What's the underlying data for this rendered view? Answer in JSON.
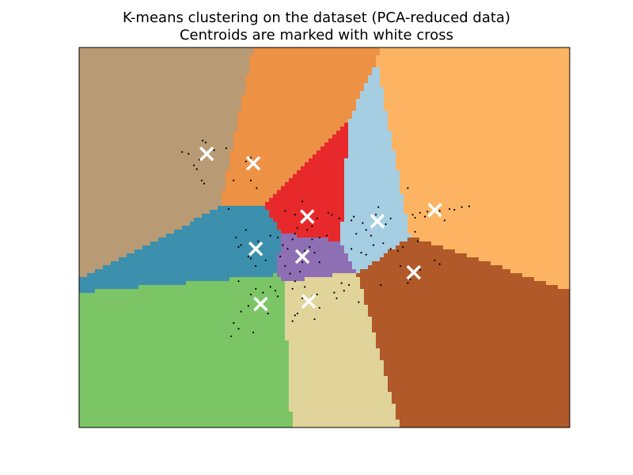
{
  "chart_data": {
    "type": "scatter",
    "title_lines": [
      "K-means clustering on the dataset (PCA-reduced data)",
      "Centroids are marked with white cross"
    ],
    "xlabel": "",
    "ylabel": "",
    "axes_ticks": "none",
    "xlim": [
      0,
      100
    ],
    "ylim": [
      0,
      100
    ],
    "legend": "none",
    "grid": false,
    "region_colors": [
      "#b89b74",
      "#ed9145",
      "#fdb462",
      "#a6cee3",
      "#e7292b",
      "#3c8fad",
      "#8e6fb4",
      "#7cc566",
      "#e0d49a",
      "#b15928"
    ],
    "centroids": [
      {
        "x": 26.0,
        "y": 72.0
      },
      {
        "x": 35.5,
        "y": 69.5
      },
      {
        "x": 46.5,
        "y": 55.5
      },
      {
        "x": 60.8,
        "y": 54.3
      },
      {
        "x": 72.5,
        "y": 57.2
      },
      {
        "x": 36.0,
        "y": 47.0
      },
      {
        "x": 45.5,
        "y": 45.0
      },
      {
        "x": 68.2,
        "y": 40.8
      },
      {
        "x": 37.0,
        "y": 32.5
      },
      {
        "x": 46.8,
        "y": 33.2
      }
    ],
    "points": [
      {
        "x": 21.0,
        "y": 72.5
      },
      {
        "x": 22.3,
        "y": 72.0
      },
      {
        "x": 25.2,
        "y": 75.5
      },
      {
        "x": 25.8,
        "y": 75.0
      },
      {
        "x": 23.4,
        "y": 69.0
      },
      {
        "x": 24.0,
        "y": 68.0
      },
      {
        "x": 25.0,
        "y": 65.0
      },
      {
        "x": 25.5,
        "y": 64.2
      },
      {
        "x": 27.5,
        "y": 73.0
      },
      {
        "x": 30.0,
        "y": 73.5
      },
      {
        "x": 24.5,
        "y": 70.5
      },
      {
        "x": 25.5,
        "y": 71.5
      },
      {
        "x": 35.0,
        "y": 71.0
      },
      {
        "x": 36.5,
        "y": 68.0
      },
      {
        "x": 35.0,
        "y": 65.0
      },
      {
        "x": 31.5,
        "y": 65.0
      },
      {
        "x": 34.0,
        "y": 70.0
      },
      {
        "x": 36.2,
        "y": 63.0
      },
      {
        "x": 42.0,
        "y": 57.0
      },
      {
        "x": 44.0,
        "y": 56.0
      },
      {
        "x": 46.5,
        "y": 52.0
      },
      {
        "x": 47.5,
        "y": 53.0
      },
      {
        "x": 48.5,
        "y": 55.0
      },
      {
        "x": 50.8,
        "y": 56.5
      },
      {
        "x": 51.5,
        "y": 56.0
      },
      {
        "x": 49.0,
        "y": 50.0
      },
      {
        "x": 44.5,
        "y": 52.5
      },
      {
        "x": 45.5,
        "y": 59.5
      },
      {
        "x": 50.5,
        "y": 50.5
      },
      {
        "x": 53.0,
        "y": 55.0
      },
      {
        "x": 55.5,
        "y": 54.5
      },
      {
        "x": 56.0,
        "y": 55.5
      },
      {
        "x": 57.8,
        "y": 53.8
      },
      {
        "x": 58.5,
        "y": 52.0
      },
      {
        "x": 60.5,
        "y": 56.0
      },
      {
        "x": 62.5,
        "y": 53.5
      },
      {
        "x": 63.5,
        "y": 55.0
      },
      {
        "x": 59.5,
        "y": 50.5
      },
      {
        "x": 61.0,
        "y": 58.0
      },
      {
        "x": 56.5,
        "y": 51.0
      },
      {
        "x": 68.0,
        "y": 56.0
      },
      {
        "x": 68.5,
        "y": 55.2
      },
      {
        "x": 69.5,
        "y": 56.5
      },
      {
        "x": 70.5,
        "y": 55.5
      },
      {
        "x": 71.0,
        "y": 56.8
      },
      {
        "x": 73.5,
        "y": 57.0
      },
      {
        "x": 75.5,
        "y": 57.5
      },
      {
        "x": 76.5,
        "y": 57.3
      },
      {
        "x": 78.0,
        "y": 58.0
      },
      {
        "x": 79.5,
        "y": 58.2
      },
      {
        "x": 68.5,
        "y": 51.5
      },
      {
        "x": 67.0,
        "y": 63.0
      },
      {
        "x": 74.5,
        "y": 54.5
      },
      {
        "x": 30.5,
        "y": 57.5
      },
      {
        "x": 32.0,
        "y": 50.0
      },
      {
        "x": 33.0,
        "y": 48.0
      },
      {
        "x": 34.5,
        "y": 45.0
      },
      {
        "x": 35.0,
        "y": 44.5
      },
      {
        "x": 36.5,
        "y": 49.0
      },
      {
        "x": 37.0,
        "y": 46.0
      },
      {
        "x": 38.0,
        "y": 44.0
      },
      {
        "x": 39.0,
        "y": 50.5
      },
      {
        "x": 36.0,
        "y": 42.5
      },
      {
        "x": 34.0,
        "y": 52.0
      },
      {
        "x": 32.5,
        "y": 47.5
      },
      {
        "x": 40.5,
        "y": 50.0
      },
      {
        "x": 41.5,
        "y": 48.0
      },
      {
        "x": 42.5,
        "y": 47.0
      },
      {
        "x": 43.5,
        "y": 49.5
      },
      {
        "x": 44.5,
        "y": 44.0
      },
      {
        "x": 45.0,
        "y": 41.0
      },
      {
        "x": 46.0,
        "y": 46.5
      },
      {
        "x": 47.0,
        "y": 47.5
      },
      {
        "x": 48.0,
        "y": 46.0
      },
      {
        "x": 49.0,
        "y": 43.5
      },
      {
        "x": 42.0,
        "y": 42.5
      },
      {
        "x": 43.0,
        "y": 40.5
      },
      {
        "x": 45.5,
        "y": 43.5
      },
      {
        "x": 47.5,
        "y": 49.5
      },
      {
        "x": 41.0,
        "y": 45.0
      },
      {
        "x": 44.0,
        "y": 51.0
      },
      {
        "x": 55.5,
        "y": 47.0
      },
      {
        "x": 57.5,
        "y": 46.0
      },
      {
        "x": 60.0,
        "y": 48.0
      },
      {
        "x": 62.0,
        "y": 48.5
      },
      {
        "x": 63.5,
        "y": 47.0
      },
      {
        "x": 65.0,
        "y": 46.5
      },
      {
        "x": 58.5,
        "y": 45.5
      },
      {
        "x": 61.5,
        "y": 37.5
      },
      {
        "x": 65.5,
        "y": 42.5
      },
      {
        "x": 67.0,
        "y": 38.0
      },
      {
        "x": 67.5,
        "y": 39.0
      },
      {
        "x": 69.5,
        "y": 41.5
      },
      {
        "x": 72.5,
        "y": 44.0
      },
      {
        "x": 73.5,
        "y": 43.0
      },
      {
        "x": 66.0,
        "y": 47.5
      },
      {
        "x": 69.0,
        "y": 49.0
      },
      {
        "x": 32.5,
        "y": 38.5
      },
      {
        "x": 35.0,
        "y": 35.0
      },
      {
        "x": 37.5,
        "y": 35.5
      },
      {
        "x": 38.0,
        "y": 34.0
      },
      {
        "x": 39.0,
        "y": 37.0
      },
      {
        "x": 40.0,
        "y": 36.0
      },
      {
        "x": 33.0,
        "y": 30.5
      },
      {
        "x": 31.5,
        "y": 27.5
      },
      {
        "x": 32.5,
        "y": 26.0
      },
      {
        "x": 31.0,
        "y": 24.0
      },
      {
        "x": 34.5,
        "y": 32.0
      },
      {
        "x": 36.0,
        "y": 36.5
      },
      {
        "x": 38.5,
        "y": 30.0
      },
      {
        "x": 40.5,
        "y": 34.5
      },
      {
        "x": 35.5,
        "y": 25.0
      },
      {
        "x": 43.5,
        "y": 36.5
      },
      {
        "x": 44.0,
        "y": 29.5
      },
      {
        "x": 43.5,
        "y": 28.0
      },
      {
        "x": 44.5,
        "y": 30.0
      },
      {
        "x": 45.5,
        "y": 34.0
      },
      {
        "x": 47.5,
        "y": 34.5
      },
      {
        "x": 48.5,
        "y": 35.0
      },
      {
        "x": 49.0,
        "y": 31.5
      },
      {
        "x": 46.0,
        "y": 37.0
      },
      {
        "x": 48.0,
        "y": 28.5
      },
      {
        "x": 52.0,
        "y": 35.5
      },
      {
        "x": 52.5,
        "y": 34.0
      },
      {
        "x": 55.0,
        "y": 37.5
      },
      {
        "x": 54.0,
        "y": 36.0
      },
      {
        "x": 53.5,
        "y": 38.0
      },
      {
        "x": 57.0,
        "y": 33.0
      },
      {
        "x": 44.0,
        "y": 38.5
      }
    ]
  }
}
